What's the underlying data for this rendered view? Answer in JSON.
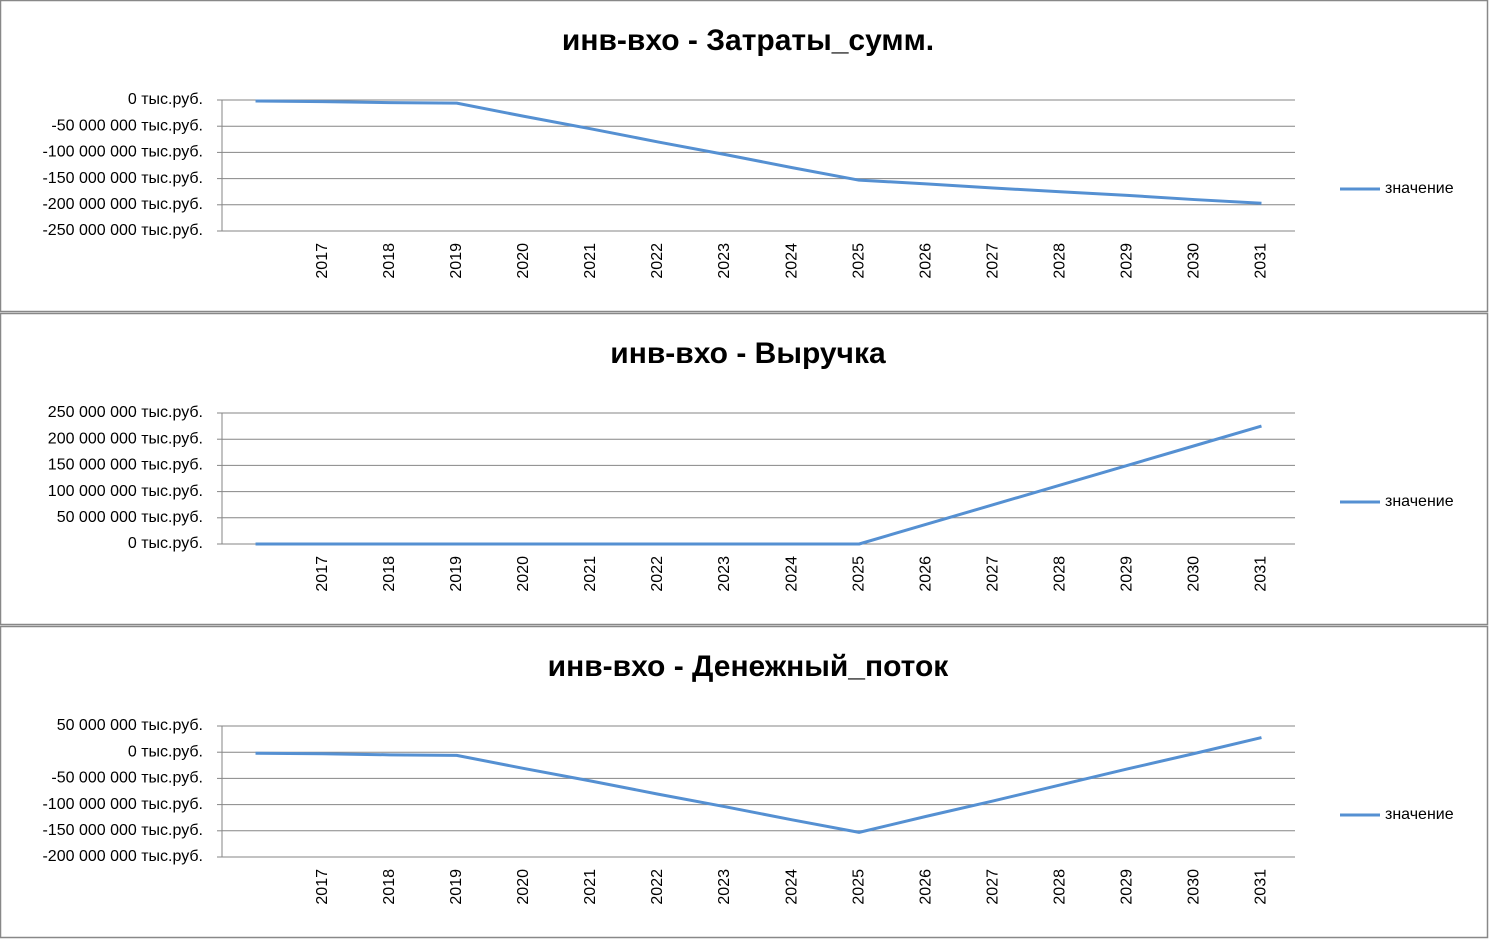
{
  "chart_data": [
    {
      "type": "line",
      "title": "инв-вхо - Затраты_сумм.",
      "categories": [
        null,
        "2017",
        "2018",
        "2019",
        "2020",
        "2021",
        "2022",
        "2023",
        "2024",
        "2025",
        "2026",
        "2027",
        "2028",
        "2029",
        "2030",
        "2031"
      ],
      "series": [
        {
          "name": "значение",
          "color": "#5590d2",
          "values": [
            -2000000,
            -3000000,
            -5000000,
            -6000000,
            -31000000,
            -55000000,
            -80000000,
            -104000000,
            -129000000,
            -153000000,
            -160000000,
            -168000000,
            -175000000,
            -182000000,
            -190000000,
            -197000000
          ]
        }
      ],
      "ylim": [
        -250000000,
        0
      ],
      "yticks": [
        {
          "value": 0,
          "label": "0 тыс.руб."
        },
        {
          "value": -50000000,
          "label": "-50 000 000 тыс.руб."
        },
        {
          "value": -100000000,
          "label": "-100 000 000 тыс.руб."
        },
        {
          "value": -150000000,
          "label": "-150 000 000 тыс.руб."
        },
        {
          "value": -200000000,
          "label": "-200 000 000 тыс.руб."
        },
        {
          "value": -250000000,
          "label": "-250 000 000 тыс.руб."
        }
      ],
      "grid": true,
      "legend": "right"
    },
    {
      "type": "line",
      "title": "инв-вхо - Выручка",
      "categories": [
        null,
        "2017",
        "2018",
        "2019",
        "2020",
        "2021",
        "2022",
        "2023",
        "2024",
        "2025",
        "2026",
        "2027",
        "2028",
        "2029",
        "2030",
        "2031"
      ],
      "series": [
        {
          "name": "значение",
          "color": "#5590d2",
          "values": [
            0,
            0,
            0,
            0,
            0,
            0,
            0,
            0,
            0,
            0,
            37500000,
            75000000,
            112500000,
            150000000,
            187500000,
            225000000
          ]
        }
      ],
      "ylim": [
        0,
        250000000
      ],
      "yticks": [
        {
          "value": 250000000,
          "label": "250 000 000 тыс.руб."
        },
        {
          "value": 200000000,
          "label": "200 000 000 тыс.руб."
        },
        {
          "value": 150000000,
          "label": "150 000 000 тыс.руб."
        },
        {
          "value": 100000000,
          "label": "100 000 000 тыс.руб."
        },
        {
          "value": 50000000,
          "label": "50 000 000 тыс.руб."
        },
        {
          "value": 0,
          "label": "0 тыс.руб."
        }
      ],
      "grid": true,
      "legend": "right"
    },
    {
      "type": "line",
      "title": "инв-вхо - Денежный_поток",
      "categories": [
        null,
        "2017",
        "2018",
        "2019",
        "2020",
        "2021",
        "2022",
        "2023",
        "2024",
        "2025",
        "2026",
        "2027",
        "2028",
        "2029",
        "2030",
        "2031"
      ],
      "series": [
        {
          "name": "значение",
          "color": "#5590d2",
          "values": [
            -2000000,
            -3000000,
            -5000000,
            -6000000,
            -31000000,
            -55000000,
            -80000000,
            -104000000,
            -129000000,
            -153000000,
            -122500000,
            -93000000,
            -62500000,
            -32000000,
            -2500000,
            28000000
          ]
        }
      ],
      "ylim": [
        -200000000,
        50000000
      ],
      "yticks": [
        {
          "value": 50000000,
          "label": "50 000 000 тыс.руб."
        },
        {
          "value": 0,
          "label": "0 тыс.руб."
        },
        {
          "value": -50000000,
          "label": "-50 000 000 тыс.руб."
        },
        {
          "value": -100000000,
          "label": "-100 000 000 тыс.руб."
        },
        {
          "value": -150000000,
          "label": "-150 000 000 тыс.руб."
        },
        {
          "value": -200000000,
          "label": "-200 000 000 тыс.руб."
        }
      ],
      "grid": true,
      "legend": "right"
    }
  ]
}
